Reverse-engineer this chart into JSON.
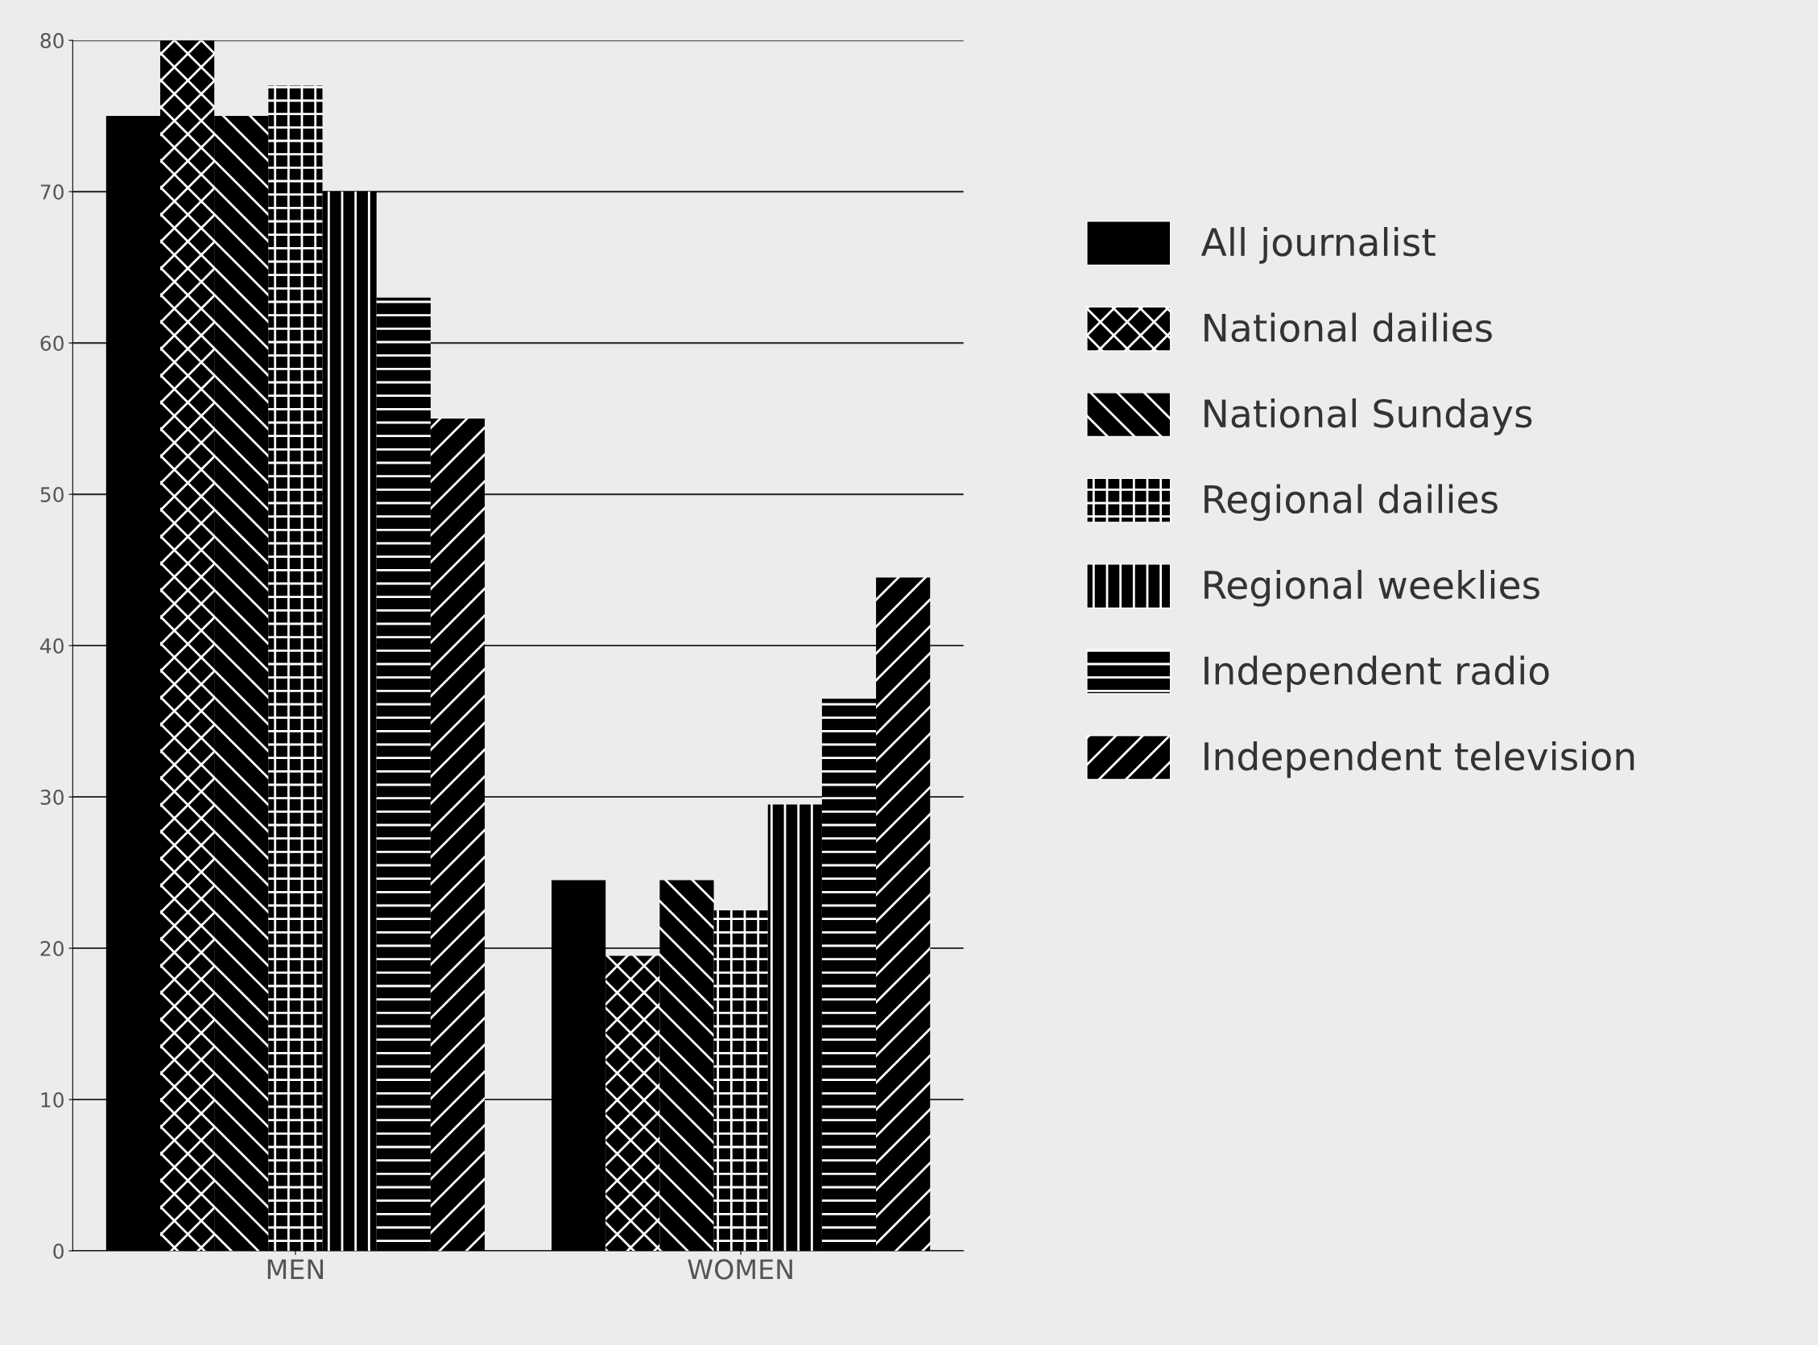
{
  "chart_data": {
    "type": "bar",
    "categories": [
      "MEN",
      "WOMEN"
    ],
    "series": [
      {
        "name": "All journalist",
        "color": "#000000",
        "values": [
          75,
          24.5
        ]
      },
      {
        "name": "National dailies",
        "color": "#000000",
        "values": [
          80,
          19.5
        ]
      },
      {
        "name": "National Sundays",
        "color": "#000000",
        "values": [
          75,
          24.5
        ]
      },
      {
        "name": "Regional dailies",
        "color": "#000000",
        "values": [
          77,
          22.5
        ]
      },
      {
        "name": "Regional weeklies",
        "color": "#000000",
        "values": [
          70,
          29.5
        ]
      },
      {
        "name": "Independent radio",
        "color": "#000000",
        "values": [
          63,
          36.5
        ]
      },
      {
        "name": "Independent television",
        "color": "#000000",
        "values": [
          55,
          44.5
        ]
      }
    ],
    "ylim": [
      0,
      80
    ],
    "yticks": [
      0,
      10,
      20,
      30,
      40,
      50,
      60,
      70,
      80
    ],
    "grid": "y",
    "legend": "right"
  }
}
